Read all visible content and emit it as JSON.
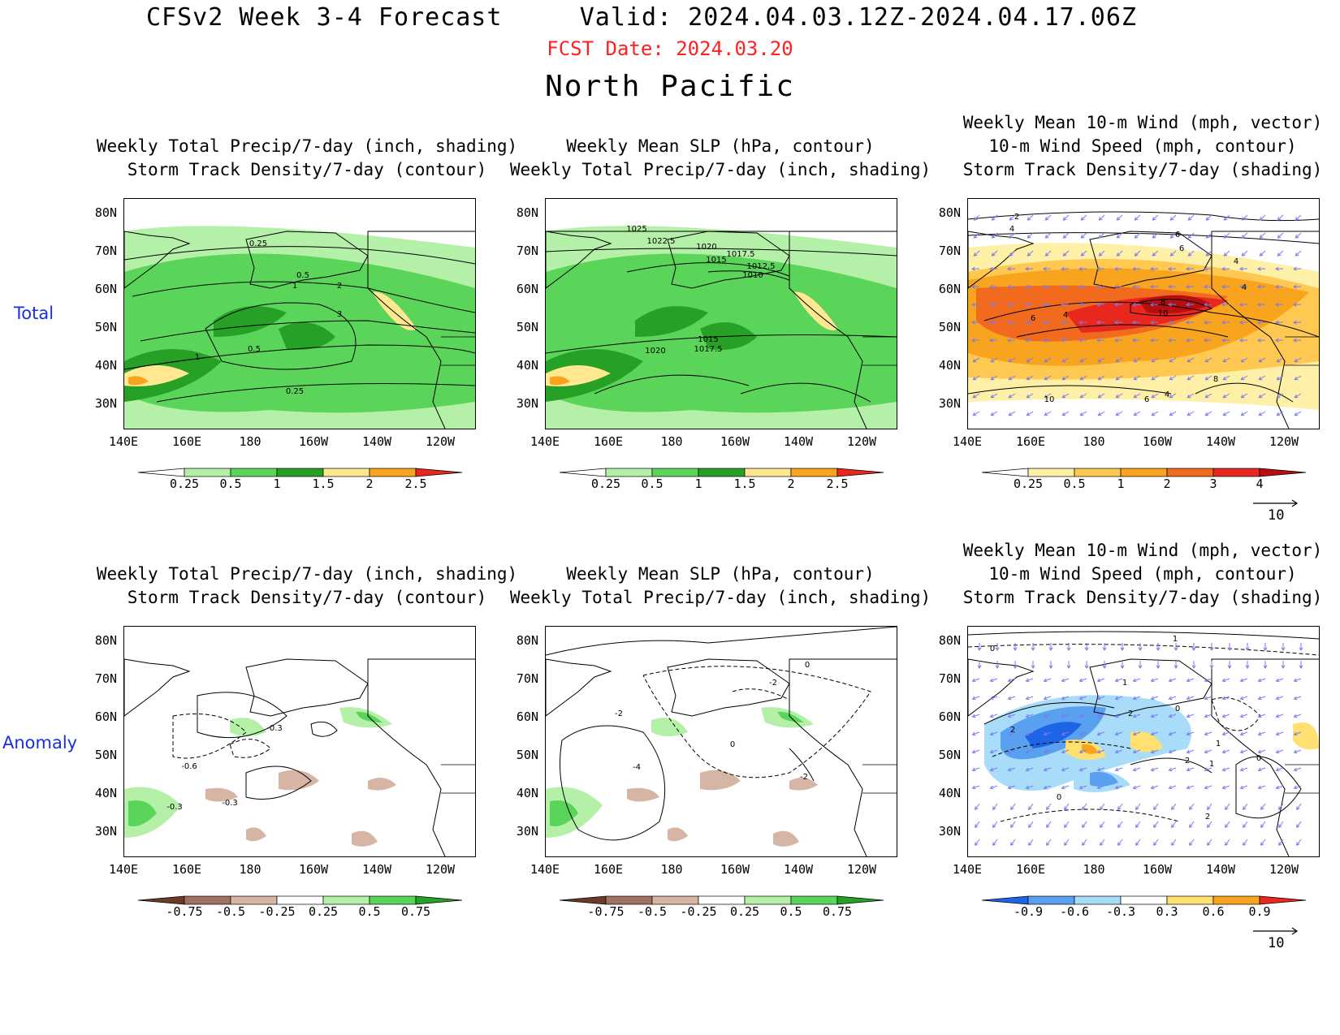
{
  "header": {
    "title": "CFSv2 Week 3-4 Forecast     Valid: 2024.04.03.12Z-2024.04.17.06Z",
    "fcst_date": "FCST Date: 2024.03.20",
    "region": "North Pacific"
  },
  "colors": {
    "fcst_date": "#ff2020",
    "row_label": "#1a2fe0",
    "vector": "#7a7aee"
  },
  "row_labels": [
    "Total",
    "Anomaly"
  ],
  "axes": {
    "lat_labels": [
      "80N",
      "70N",
      "60N",
      "50N",
      "40N",
      "30N"
    ],
    "lon_labels": [
      "140E",
      "160E",
      "180",
      "160W",
      "140W",
      "120W"
    ]
  },
  "panels": [
    {
      "title": [
        "Weekly Total Precip/7-day (inch, shading)",
        "Storm Track Density/7-day (contour)"
      ],
      "colorbar": [
        "0.25",
        "0.5",
        "1",
        "1.5",
        "2",
        "2.5"
      ],
      "contour_labels": [
        "0.25",
        "0.5",
        "1",
        "2",
        "3",
        "1",
        "0.5",
        "0.25"
      ]
    },
    {
      "title": [
        "Weekly Mean SLP (hPa, contour)",
        "Weekly Total Precip/7-day (inch, shading)"
      ],
      "colorbar": [
        "0.25",
        "0.5",
        "1",
        "1.5",
        "2",
        "2.5"
      ],
      "contour_labels": [
        "1025",
        "1022.5",
        "1020",
        "1015",
        "1017.5",
        "1012.5",
        "1010",
        "1020",
        "1015",
        "1017.5"
      ]
    },
    {
      "title": [
        "Weekly Mean 10-m Wind (mph, vector)",
        "10-m Wind Speed (mph, contour)",
        "Storm Track Density/7-day (shading)"
      ],
      "colorbar": [
        "0.25",
        "0.5",
        "1",
        "2",
        "3",
        "4"
      ],
      "vector_ref": "10",
      "contour_labels": [
        "2",
        "4",
        "6",
        "6",
        "4",
        "6",
        "4",
        "8",
        "10",
        "4",
        "10",
        "6",
        "4",
        "8"
      ]
    },
    {
      "title": [
        "Weekly Total Precip/7-day (inch, shading)",
        "Storm Track Density/7-day (contour)"
      ],
      "colorbar": [
        "-0.75",
        "-0.5",
        "-0.25",
        "0.25",
        "0.5",
        "0.75"
      ],
      "contour_labels": [
        "-0.3",
        "-0.6",
        "-0.3",
        "-0.3"
      ]
    },
    {
      "title": [
        "Weekly Mean SLP (hPa, contour)",
        "Weekly Total Precip/7-day (inch, shading)"
      ],
      "colorbar": [
        "-0.75",
        "-0.5",
        "-0.25",
        "0.25",
        "0.5",
        "0.75"
      ],
      "contour_labels": [
        "0",
        "-2",
        "-2",
        "-4",
        "0",
        "-2"
      ]
    },
    {
      "title": [
        "Weekly Mean 10-m Wind (mph, vector)",
        "10-m Wind Speed (mph, contour)",
        "Storm Track Density/7-day (shading)"
      ],
      "colorbar": [
        "-0.9",
        "-0.6",
        "-0.3",
        "0.3",
        "0.6",
        "0.9"
      ],
      "vector_ref": "10",
      "contour_labels": [
        "1",
        "0",
        "2",
        "1",
        "0",
        "2",
        "1",
        "2",
        "0",
        "0",
        "1",
        "2"
      ]
    }
  ],
  "palettes": {
    "precip": [
      "#ffffff",
      "#b4f0a8",
      "#5ad55a",
      "#26a126",
      "#ffe890",
      "#f9a41e",
      "#e8281e"
    ],
    "precip_anom": [
      "#6b3a28",
      "#a07060",
      "#d7b5a5",
      "#ffffff",
      "#b4f0a8",
      "#5ad55a",
      "#26a126"
    ],
    "storm": [
      "#ffffff",
      "#fff0a8",
      "#ffc850",
      "#f9a41e",
      "#f26a1e",
      "#e8281e",
      "#b50f0f"
    ],
    "storm_anom": [
      "#1e64e6",
      "#5aa0f0",
      "#a8dcf8",
      "#ffffff",
      "#ffe070",
      "#f9a41e",
      "#e8281e"
    ]
  }
}
